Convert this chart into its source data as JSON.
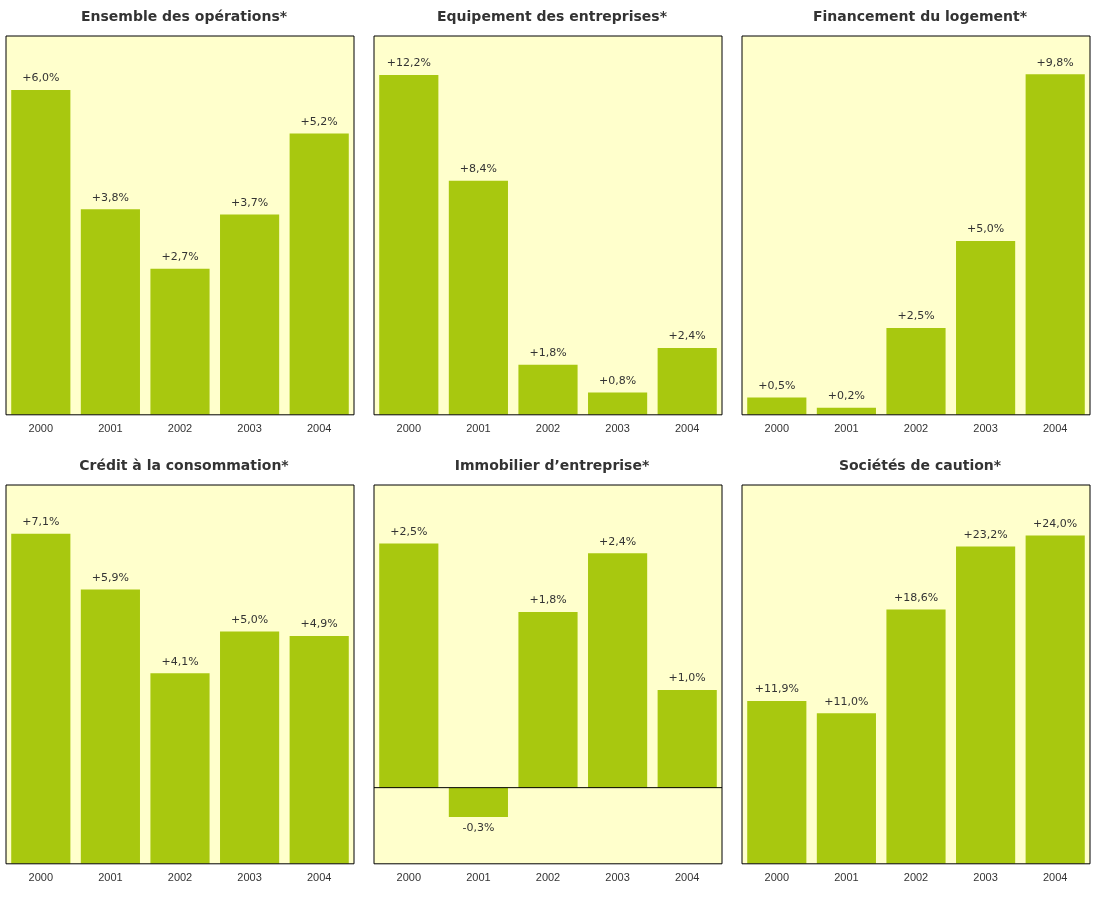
{
  "chart_data": [
    {
      "type": "bar",
      "title": "Ensemble des opérations*",
      "categories": [
        "2000",
        "2001",
        "2002",
        "2003",
        "2004"
      ],
      "values": [
        6.0,
        3.8,
        2.7,
        3.7,
        5.2
      ],
      "value_labels": [
        "+6,0%",
        "+3,8%",
        "+2,7%",
        "+3,7%",
        "+5,2%"
      ],
      "color": "#a8c80f",
      "ylim": [
        0,
        7
      ],
      "bands": [
        {
          "axis": "y",
          "from": 0,
          "to": 7,
          "color": "#ffffcc"
        }
      ],
      "tick_labels": "x",
      "grid": false,
      "legend": false
    },
    {
      "type": "bar",
      "title": "Equipement des entreprises*",
      "categories": [
        "2000",
        "2001",
        "2002",
        "2003",
        "2004"
      ],
      "values": [
        12.2,
        8.4,
        1.8,
        0.8,
        2.4
      ],
      "value_labels": [
        "+12,2%",
        "+8,4%",
        "+1,8%",
        "+0,8%",
        "+2,4%"
      ],
      "color": "#a8c80f",
      "ylim": [
        0,
        13.6
      ],
      "bands": [
        {
          "axis": "y",
          "from": 0,
          "to": 13.6,
          "color": "#ffffcc"
        }
      ],
      "tick_labels": "x",
      "grid": false,
      "legend": false
    },
    {
      "type": "bar",
      "title": "Financement du logement*",
      "categories": [
        "2000",
        "2001",
        "2002",
        "2003",
        "2004"
      ],
      "values": [
        0.5,
        0.2,
        2.5,
        5.0,
        9.8
      ],
      "value_labels": [
        "+0,5%",
        "+0,2%",
        "+2,5%",
        "+5,0%",
        "+9,8%"
      ],
      "color": "#a8c80f",
      "ylim": [
        0,
        10.9
      ],
      "bands": [
        {
          "axis": "y",
          "from": 0,
          "to": 10.9,
          "color": "#ffffcc"
        }
      ],
      "tick_labels": "x",
      "grid": false,
      "legend": false
    },
    {
      "type": "bar",
      "title": "Crédit à la consommation*",
      "categories": [
        "2000",
        "2001",
        "2002",
        "2003",
        "2004"
      ],
      "values": [
        7.1,
        5.9,
        4.1,
        5.0,
        4.9
      ],
      "value_labels": [
        "+7,1%",
        "+5,9%",
        "+4,1%",
        "+5,0%",
        "+4,9%"
      ],
      "color": "#a8c80f",
      "ylim": [
        0,
        8.15
      ],
      "bands": [
        {
          "axis": "y",
          "from": 0,
          "to": 8.15,
          "color": "#ffffcc"
        }
      ],
      "tick_labels": "x",
      "grid": false,
      "legend": false
    },
    {
      "type": "bar",
      "title": "Immobilier d’entreprise*",
      "categories": [
        "2000",
        "2001",
        "2002",
        "2003",
        "2004"
      ],
      "values": [
        2.5,
        -0.3,
        1.8,
        2.4,
        1.0
      ],
      "value_labels": [
        "+2,5%",
        "-0,3%",
        "+1,8%",
        "+2,4%",
        "+1,0%"
      ],
      "color": "#a8c80f",
      "ylim": [
        -0.78,
        3.1
      ],
      "bands": [
        {
          "axis": "y",
          "from": -0.78,
          "to": 3.1,
          "color": "#ffffcc"
        }
      ],
      "ref_lines": [
        {
          "axis": "y",
          "value": 0,
          "label": null,
          "color": "#000000"
        }
      ],
      "tick_labels": "x",
      "grid": false,
      "legend": false
    },
    {
      "type": "bar",
      "title": "Sociétés de caution*",
      "categories": [
        "2000",
        "2001",
        "2002",
        "2003",
        "2004"
      ],
      "values": [
        11.9,
        11.0,
        18.6,
        23.2,
        24.0
      ],
      "value_labels": [
        "+11,9%",
        "+11,0%",
        "+18,6%",
        "+23,2%",
        "+24,0%"
      ],
      "color": "#a8c80f",
      "ylim": [
        0,
        27.7
      ],
      "bands": [
        {
          "axis": "y",
          "from": 0,
          "to": 27.7,
          "color": "#ffffcc"
        }
      ],
      "tick_labels": "x",
      "grid": false,
      "legend": false
    }
  ]
}
